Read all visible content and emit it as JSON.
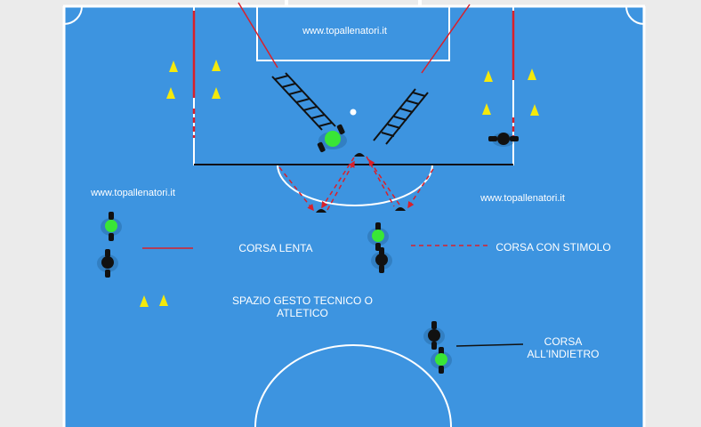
{
  "watermarks": {
    "top": "www.topallenatori.it",
    "left": "www.topallenatori.it",
    "right": "www.topallenatori.it"
  },
  "legend": {
    "slow_run": "CORSA LENTA",
    "stimulus_run": "CORSA CON  STIMOLO",
    "technical_space_line1": "SPAZIO GESTO TECNICO O",
    "technical_space_line2": "ATLETICO",
    "backward_run_line1": "CORSA",
    "backward_run_line2": "ALL'INDIETRO"
  },
  "colors": {
    "court": "#3d94e0",
    "lines": "#ffffff",
    "cone": "#f4e90c",
    "player_green": "#39e636",
    "player_black": "#111111",
    "accent_red": "#d9202a",
    "background": "#ebebeb"
  },
  "legend_line_styles": {
    "slow_run": "solid-red",
    "stimulus_run": "dashed-red",
    "backward_run": "solid-black"
  }
}
